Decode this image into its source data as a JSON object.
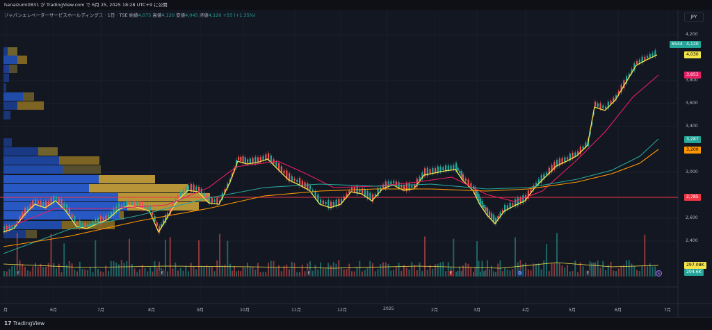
{
  "header": {
    "publish_line": "hanaizumi0831 が TradingView.com で 6月 25, 2025 18:28 UTC+9 に公開"
  },
  "legend": {
    "title": "ジャパンエレベーターサービスホールディングス · 1日 · TSE",
    "open_label": "始値",
    "open_value": "4,075",
    "high_label": "高値",
    "high_value": "4,120",
    "low_label": "安値",
    "low_value": "4,045",
    "close_label": "終値",
    "close_value": "4,120",
    "change": "+55 (+1.35%)"
  },
  "currency": "JPY",
  "price_axis": [
    "4,200",
    "3,800",
    "3,600",
    "3,400",
    "3,000",
    "2,600",
    "2,400"
  ],
  "price_tags": {
    "symbol": "6544",
    "last": "4,120",
    "ma_fast": "4,030",
    "ma_mid": "3,853",
    "ma_slow1": "3,287",
    "ma_slow2": "3,200",
    "hline": "2,785",
    "vol1": "297.08K",
    "vol2": "204.6K"
  },
  "time_axis": [
    "月",
    "6月",
    "7月",
    "8月",
    "9月",
    "10月",
    "11月",
    "12月",
    "2025",
    "2月",
    "3月",
    "4月",
    "5月",
    "6月",
    "7月"
  ],
  "events": [
    "E",
    "E",
    "E",
    "E",
    "D",
    "E"
  ],
  "footer": {
    "brand": "TradingView"
  },
  "colors": {
    "up": "#26a69a",
    "down": "#ef5350",
    "ma_fast": "#f5e44a",
    "ma_mid": "#e91e63",
    "ma_slow1": "#26a69a",
    "ma_slow2": "#ff9800",
    "hline": "#f23645"
  }
}
